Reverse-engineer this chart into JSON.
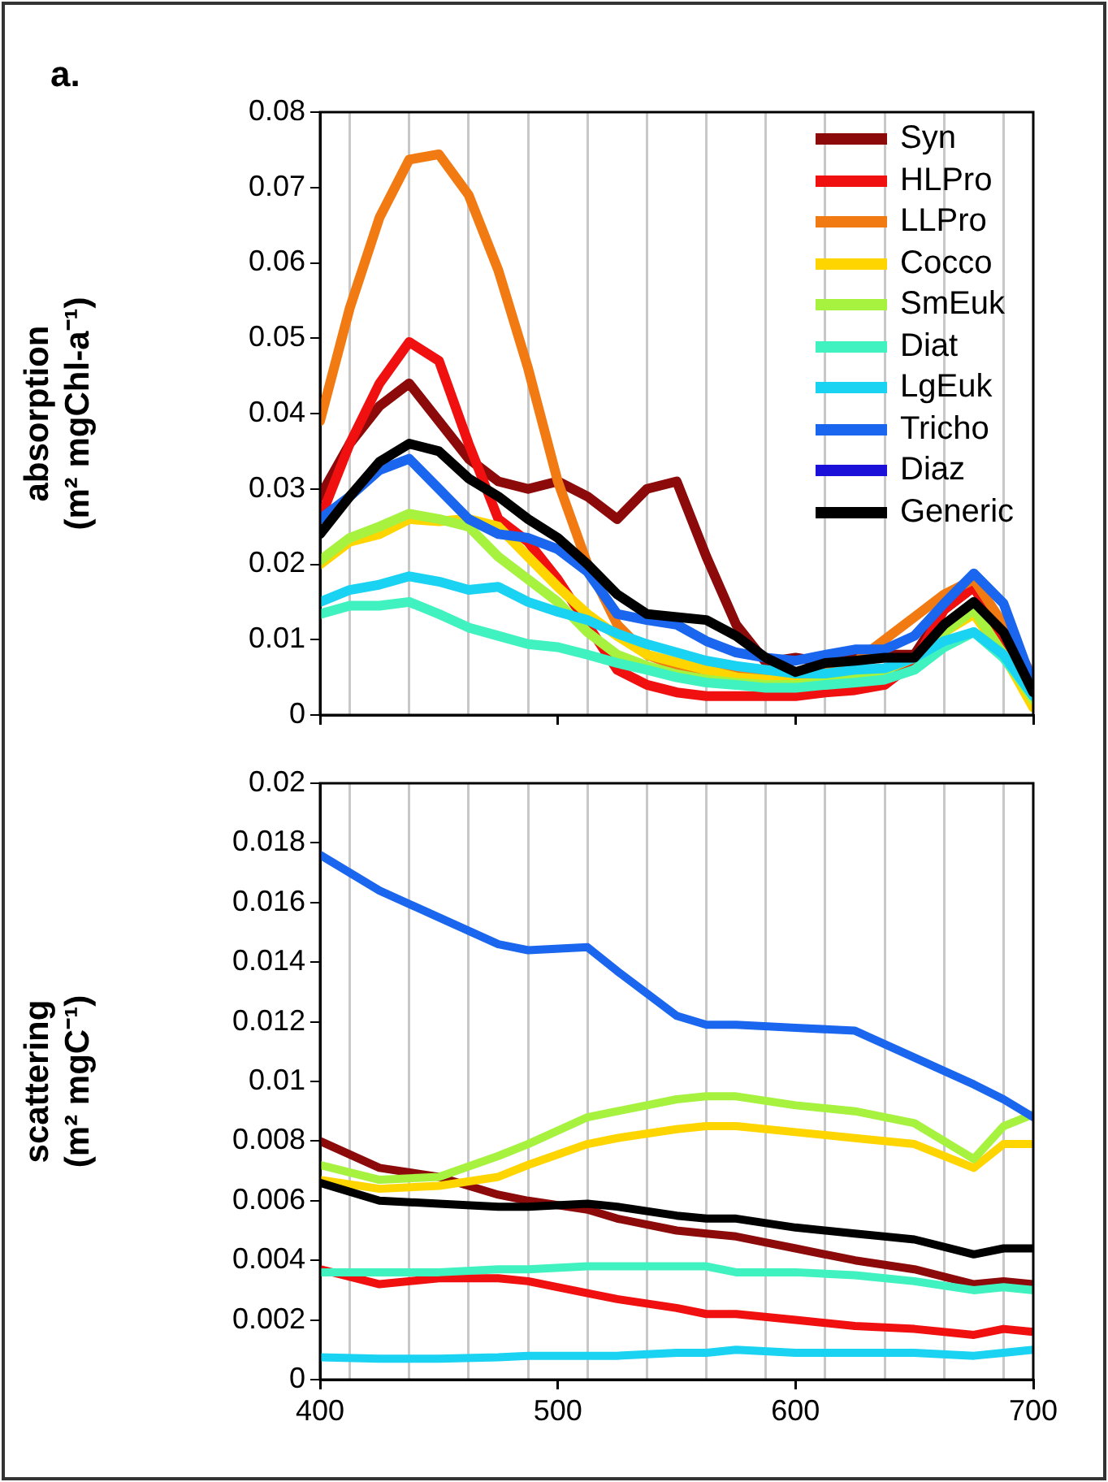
{
  "chart_data": [
    {
      "type": "line",
      "title": "a.",
      "ylabel": "absorption\n(m² mgChl-a⁻¹)",
      "legend": "top right",
      "grid": "x",
      "tick_labels": "y",
      "x": [
        400,
        412.5,
        425,
        437.5,
        450,
        462.5,
        475,
        487.5,
        500,
        512.5,
        525,
        537.5,
        550,
        562.5,
        575,
        587.5,
        600,
        612.5,
        625,
        637.5,
        650,
        662.5,
        675,
        687.5,
        700
      ],
      "xlim": [
        400,
        700
      ],
      "xticks": [
        400,
        {
          "value": 412.5,
          "label": null
        },
        {
          "value": 437.5,
          "label": null
        },
        {
          "value": 462.5,
          "label": null
        },
        {
          "value": 487.5,
          "label": null
        },
        500,
        {
          "value": 512.5,
          "label": null
        },
        {
          "value": 537.5,
          "label": null
        },
        {
          "value": 562.5,
          "label": null
        },
        {
          "value": 587.5,
          "label": null
        },
        600,
        {
          "value": 612.5,
          "label": null
        },
        {
          "value": 637.5,
          "label": null
        },
        {
          "value": 662.5,
          "label": null
        },
        {
          "value": 687.5,
          "label": null
        },
        700
      ],
      "ylim": [
        0,
        0.08
      ],
      "yticks": [
        0,
        0.01,
        0.02,
        0.03,
        0.04,
        0.05,
        0.06,
        0.07,
        0.08
      ],
      "series": [
        {
          "name": "Syn",
          "color": "#8c0a0a",
          "values": [
            0.029,
            0.036,
            0.041,
            0.044,
            0.039,
            0.034,
            0.031,
            0.03,
            0.031,
            0.029,
            0.026,
            0.03,
            0.031,
            0.021,
            0.012,
            0.007,
            0.0076,
            0.007,
            0.0075,
            0.008,
            0.008,
            0.014,
            0.017,
            0.011,
            0.004
          ]
        },
        {
          "name": "HLPro",
          "color": "#f01010",
          "values": [
            0.026,
            0.036,
            0.044,
            0.0495,
            0.047,
            0.036,
            0.026,
            0.023,
            0.018,
            0.012,
            0.006,
            0.004,
            0.003,
            0.0025,
            0.0025,
            0.0025,
            0.0025,
            0.003,
            0.0033,
            0.004,
            0.007,
            0.014,
            0.017,
            0.01,
            0.003
          ]
        },
        {
          "name": "LLPro",
          "color": "#f27a12",
          "values": [
            0.039,
            0.054,
            0.066,
            0.0737,
            0.0744,
            0.069,
            0.059,
            0.046,
            0.031,
            0.02,
            0.012,
            0.008,
            0.0065,
            0.006,
            0.0055,
            0.005,
            0.0055,
            0.006,
            0.007,
            0.01,
            0.013,
            0.016,
            0.018,
            0.012,
            0.005
          ]
        },
        {
          "name": "Cocco",
          "color": "#ffd500",
          "values": [
            0.02,
            0.023,
            0.024,
            0.026,
            0.0257,
            0.026,
            0.025,
            0.021,
            0.017,
            0.0134,
            0.0105,
            0.008,
            0.007,
            0.006,
            0.005,
            0.0047,
            0.0047,
            0.005,
            0.0055,
            0.006,
            0.0076,
            0.011,
            0.0134,
            0.008,
            0.001
          ]
        },
        {
          "name": "SmEuk",
          "color": "#a6f23f",
          "values": [
            0.0205,
            0.0235,
            0.025,
            0.0267,
            0.026,
            0.025,
            0.021,
            0.018,
            0.015,
            0.011,
            0.008,
            0.0065,
            0.0054,
            0.0047,
            0.0043,
            0.004,
            0.004,
            0.0043,
            0.0047,
            0.006,
            0.0076,
            0.011,
            0.014,
            0.008,
            0.002
          ]
        },
        {
          "name": "Diat",
          "color": "#40f2c0",
          "values": [
            0.0134,
            0.0145,
            0.0145,
            0.015,
            0.0134,
            0.0116,
            0.0105,
            0.0094,
            0.009,
            0.008,
            0.0069,
            0.006,
            0.005,
            0.0043,
            0.004,
            0.0036,
            0.0036,
            0.004,
            0.0043,
            0.0047,
            0.006,
            0.009,
            0.011,
            0.0076,
            0.0025
          ]
        },
        {
          "name": "LgEuk",
          "color": "#1ad2f2",
          "values": [
            0.015,
            0.0166,
            0.0173,
            0.0184,
            0.0177,
            0.0166,
            0.017,
            0.015,
            0.0137,
            0.0126,
            0.0108,
            0.0094,
            0.0083,
            0.0072,
            0.0065,
            0.006,
            0.0055,
            0.0055,
            0.006,
            0.0062,
            0.0076,
            0.0098,
            0.011,
            0.008,
            0.0025
          ]
        },
        {
          "name": "Tricho",
          "color": "#1a66ee",
          "values": [
            0.026,
            0.029,
            0.0325,
            0.034,
            0.03,
            0.026,
            0.024,
            0.0235,
            0.022,
            0.019,
            0.0134,
            0.0126,
            0.012,
            0.0098,
            0.0083,
            0.0076,
            0.0072,
            0.008,
            0.0087,
            0.0087,
            0.0105,
            0.0148,
            0.0188,
            0.0148,
            0.004
          ]
        },
        {
          "name": "Diaz",
          "color": "#1a10d8",
          "values": [
            null,
            null,
            null,
            null,
            null,
            null,
            null,
            null,
            null,
            null,
            null,
            null,
            null,
            null,
            null,
            null,
            null,
            null,
            null,
            null,
            null,
            null,
            null,
            null,
            null
          ]
        },
        {
          "name": "Generic",
          "color": "#000000",
          "values": [
            0.024,
            0.029,
            0.0336,
            0.036,
            0.035,
            0.0314,
            0.029,
            0.026,
            0.0235,
            0.02,
            0.016,
            0.0134,
            0.013,
            0.0126,
            0.0105,
            0.0076,
            0.0057,
            0.0069,
            0.0072,
            0.0076,
            0.0076,
            0.012,
            0.015,
            0.011,
            0.003
          ]
        }
      ]
    },
    {
      "type": "line",
      "ylabel": "scattering\n(m² mgC⁻¹)",
      "grid": "x",
      "x": [
        400,
        425,
        450,
        475,
        487.5,
        512.5,
        525,
        550,
        562.5,
        575,
        600,
        625,
        650,
        675,
        687.5,
        700
      ],
      "xlim": [
        400,
        700
      ],
      "xticks": [
        400,
        {
          "value": 412.5,
          "label": null
        },
        {
          "value": 437.5,
          "label": null
        },
        {
          "value": 462.5,
          "label": null
        },
        {
          "value": 487.5,
          "label": null
        },
        500,
        {
          "value": 512.5,
          "label": null
        },
        {
          "value": 537.5,
          "label": null
        },
        {
          "value": 562.5,
          "label": null
        },
        {
          "value": 587.5,
          "label": null
        },
        600,
        {
          "value": 612.5,
          "label": null
        },
        {
          "value": 637.5,
          "label": null
        },
        {
          "value": 662.5,
          "label": null
        },
        {
          "value": 687.5,
          "label": null
        },
        700
      ],
      "ylim": [
        0,
        0.02
      ],
      "yticks": [
        0,
        0.002,
        0.004,
        0.006,
        0.008,
        0.01,
        0.012,
        0.014,
        0.016,
        0.018,
        0.02
      ],
      "series": [
        {
          "color": "#8c0a0a",
          "values": [
            0.008,
            0.0071,
            0.0068,
            0.0062,
            0.006,
            0.0057,
            0.0054,
            0.005,
            0.0049,
            0.0048,
            0.0044,
            0.004,
            0.0037,
            0.0032,
            0.0033,
            0.0032
          ]
        },
        {
          "color": "#f01010",
          "values": [
            0.0037,
            0.0032,
            0.0034,
            0.0034,
            0.0033,
            0.0029,
            0.0027,
            0.0024,
            0.0022,
            0.0022,
            0.002,
            0.0018,
            0.0017,
            0.0015,
            0.0017,
            0.0016
          ]
        },
        {
          "color": "#f27a12",
          "values": [
            null,
            null,
            null,
            null,
            null,
            null,
            null,
            null,
            null,
            null,
            null,
            null,
            null,
            null,
            null,
            null
          ]
        },
        {
          "color": "#ffd500",
          "values": [
            0.0067,
            0.0064,
            0.0065,
            0.0068,
            0.0072,
            0.0079,
            0.0081,
            0.0084,
            0.0085,
            0.0085,
            0.0083,
            0.0081,
            0.0079,
            0.0071,
            0.0079,
            0.0079
          ]
        },
        {
          "color": "#a6f23f",
          "values": [
            0.0072,
            0.0067,
            0.0068,
            0.0075,
            0.0079,
            0.0088,
            0.009,
            0.0094,
            0.0095,
            0.0095,
            0.0092,
            0.009,
            0.0086,
            0.0074,
            0.0085,
            0.0089
          ]
        },
        {
          "color": "#40f2c0",
          "values": [
            0.0036,
            0.0036,
            0.0036,
            0.0037,
            0.0037,
            0.0038,
            0.0038,
            0.0038,
            0.0038,
            0.0036,
            0.0036,
            0.0035,
            0.0033,
            0.003,
            0.0031,
            0.003
          ]
        },
        {
          "color": "#1ad2f2",
          "values": [
            0.00075,
            0.0007,
            0.0007,
            0.00075,
            0.0008,
            0.0008,
            0.0008,
            0.0009,
            0.0009,
            0.001,
            0.0009,
            0.0009,
            0.0009,
            0.0008,
            0.0009,
            0.001
          ]
        },
        {
          "color": "#1a66ee",
          "values": [
            0.0176,
            0.0164,
            0.0155,
            0.0146,
            0.0144,
            0.0145,
            0.0137,
            0.0122,
            0.0119,
            0.0119,
            0.0118,
            0.0117,
            0.0108,
            0.0099,
            0.0094,
            0.0088
          ]
        },
        {
          "color": "#1a10d8",
          "values": [
            null,
            null,
            null,
            null,
            null,
            null,
            null,
            null,
            null,
            null,
            null,
            null,
            null,
            null,
            null,
            null
          ]
        },
        {
          "color": "#000000",
          "values": [
            0.0066,
            0.006,
            0.0059,
            0.0058,
            0.0058,
            0.0059,
            0.0058,
            0.0055,
            0.0054,
            0.0054,
            0.0051,
            0.0049,
            0.0047,
            0.0042,
            0.0044,
            0.0044
          ]
        }
      ]
    }
  ]
}
